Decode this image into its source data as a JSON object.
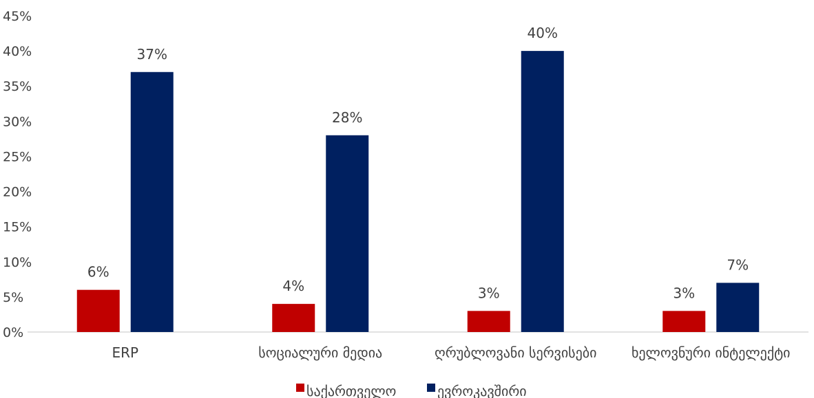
{
  "chart_data": {
    "type": "bar",
    "categories": [
      "ERP",
      "სოციალური მედია",
      "ღრუბლოვანი სერვისები",
      "ხელოვნური ინტელექტი"
    ],
    "series": [
      {
        "name": "საქართველო",
        "values": [
          6,
          4,
          3,
          3
        ],
        "labels": [
          "6%",
          "4%",
          "3%",
          "3%"
        ],
        "color": "#c00000"
      },
      {
        "name": "ევროკავშირი",
        "values": [
          37,
          28,
          40,
          7
        ],
        "labels": [
          "37%",
          "28%",
          "40%",
          "7%"
        ],
        "color": "#002060"
      }
    ],
    "title": "",
    "xlabel": "",
    "ylabel": "",
    "ylim": [
      0,
      45
    ],
    "yticks": [
      "0%",
      "5%",
      "10%",
      "15%",
      "20%",
      "25%",
      "30%",
      "35%",
      "40%",
      "45%"
    ],
    "grid": false,
    "legend": "bottom-center"
  }
}
